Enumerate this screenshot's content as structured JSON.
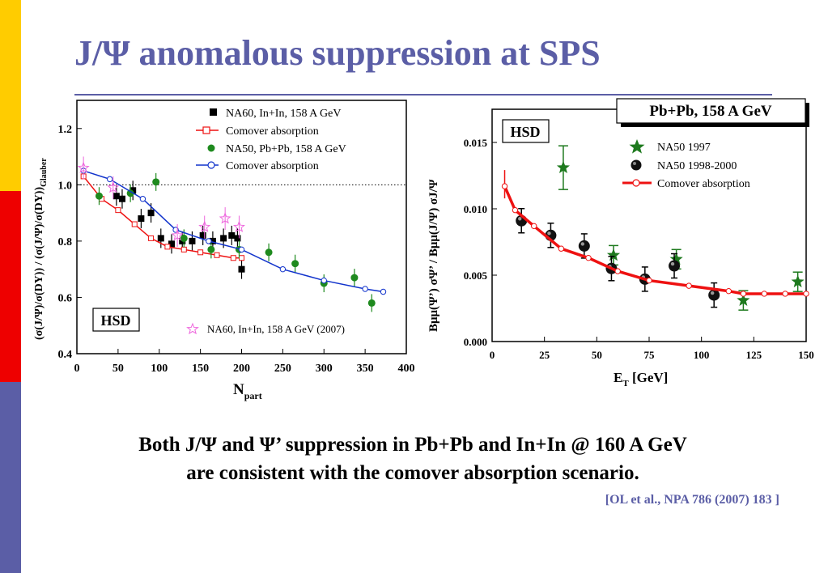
{
  "slide": {
    "title": "J/Ψ anomalous suppression at SPS",
    "caption_line1": "Both J/Ψ and Ψ’ suppression in Pb+Pb and In+In @ 160 A GeV",
    "caption_line2": "are consistent with the comover absorption scenario.",
    "reference": "[OL et al., NPA 786 (2007) 183 ]",
    "colors": {
      "title": "#5b5ea6",
      "strip_yellow": "#ffcc00",
      "strip_red": "#ee0000",
      "strip_blue": "#5b5ea6"
    }
  },
  "chart_data": [
    {
      "type": "scatter",
      "ylabel": "(σ(J/Ψ)/σ(DY)) / (σ(J/Ψ)/σ(DY))",
      "ylabel_sub": "Glauber",
      "xlabel": "N",
      "xlabel_sub": "part",
      "xlim": [
        0,
        400
      ],
      "ylim": [
        0.4,
        1.3
      ],
      "xticks": [
        0,
        50,
        100,
        150,
        200,
        250,
        300,
        350,
        400
      ],
      "yticks": [
        0.4,
        0.6,
        0.8,
        1.0,
        1.2
      ],
      "reference_line": 1.0,
      "badge": "HSD",
      "legend": [
        "NA60, In+In,   158 A GeV",
        "Comover absorption",
        "NA50, Pb+Pb, 158 A GeV",
        "Comover absorption"
      ],
      "legend_2007": "NA60, In+In, 158 A GeV (2007)",
      "series": [
        {
          "name": "NA60, In+In,   158 A GeV",
          "marker": "square",
          "color": "#000000",
          "x": [
            48,
            55,
            68,
            78,
            90,
            102,
            115,
            128,
            140,
            153,
            165,
            178,
            188,
            195,
            200
          ],
          "y": [
            0.96,
            0.95,
            0.98,
            0.88,
            0.9,
            0.81,
            0.79,
            0.8,
            0.8,
            0.82,
            0.8,
            0.81,
            0.82,
            0.81,
            0.7
          ]
        },
        {
          "name": "Comover absorption",
          "marker": "line-open-square",
          "color": "#ee1111",
          "x": [
            8,
            30,
            50,
            70,
            90,
            110,
            130,
            150,
            170,
            190,
            200
          ],
          "y": [
            1.03,
            0.95,
            0.91,
            0.86,
            0.81,
            0.78,
            0.77,
            0.76,
            0.75,
            0.74,
            0.74
          ]
        },
        {
          "name": "NA50, Pb+Pb, 158 A GeV",
          "marker": "circle",
          "color": "#1e8a1e",
          "x": [
            27,
            65,
            96,
            130,
            163,
            197,
            233,
            265,
            300,
            337,
            358
          ],
          "y": [
            0.96,
            0.97,
            1.01,
            0.81,
            0.77,
            0.77,
            0.76,
            0.72,
            0.65,
            0.67,
            0.58
          ]
        },
        {
          "name": "Comover absorption",
          "marker": "line-open-circle",
          "color": "#1133cc",
          "x": [
            8,
            40,
            80,
            120,
            160,
            200,
            250,
            300,
            350,
            372
          ],
          "y": [
            1.05,
            1.02,
            0.95,
            0.84,
            0.8,
            0.77,
            0.7,
            0.66,
            0.63,
            0.62
          ]
        },
        {
          "name": "NA60, In+In, 158 A GeV (2007)",
          "marker": "open-star",
          "color": "#ee66dd",
          "x": [
            8,
            44,
            122,
            155,
            180,
            197
          ],
          "y": [
            1.06,
            0.99,
            0.82,
            0.85,
            0.88,
            0.85
          ]
        }
      ]
    },
    {
      "type": "scatter",
      "title": "Pb+Pb, 158 A GeV",
      "ylabel": "Bμμ(Ψ’) σΨ’ / Bμμ(J/Ψ) σJ/Ψ",
      "xlabel": "E",
      "xlabel_sub": "T",
      "xlabel_unit": "[GeV]",
      "xlim": [
        0,
        150
      ],
      "ylim": [
        0,
        0.0175
      ],
      "xticks": [
        0,
        25,
        50,
        75,
        100,
        125,
        150
      ],
      "yticks": [
        "0.000",
        "0.005",
        "0.010",
        "0.015"
      ],
      "badge": "HSD",
      "legend": [
        "NA50 1997",
        "NA50 1998-2000",
        "Comover absorption"
      ],
      "series": [
        {
          "name": "NA50 1997",
          "marker": "star",
          "color": "#1e7a1e",
          "x": [
            34,
            58,
            88,
            120,
            146
          ],
          "y": [
            0.0131,
            0.0065,
            0.0062,
            0.0031,
            0.0045
          ]
        },
        {
          "name": "NA50 1998-2000",
          "marker": "ball",
          "color": "#000000",
          "x": [
            14,
            28,
            44,
            57,
            73,
            87,
            106
          ],
          "y": [
            0.0091,
            0.008,
            0.0072,
            0.0055,
            0.0047,
            0.0057,
            0.0035
          ]
        },
        {
          "name": "Comover absorption",
          "marker": "line-open-circle",
          "color": "#ee1111",
          "x": [
            6,
            11,
            20,
            33,
            46,
            60,
            75,
            94,
            113,
            120,
            130,
            140,
            150
          ],
          "y": [
            0.0117,
            0.0099,
            0.0087,
            0.007,
            0.0063,
            0.0053,
            0.0046,
            0.0042,
            0.0038,
            0.0036,
            0.0036,
            0.0036,
            0.0036
          ]
        }
      ]
    }
  ]
}
